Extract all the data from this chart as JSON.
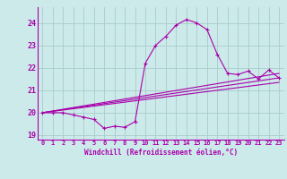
{
  "xlabel": "Windchill (Refroidissement éolien,°C)",
  "bg_color": "#cceaea",
  "grid_color": "#aacccc",
  "line_color": "#aa00aa",
  "xlim": [
    -0.5,
    23.5
  ],
  "ylim": [
    18.8,
    24.7
  ],
  "yticks": [
    19,
    20,
    21,
    22,
    23,
    24
  ],
  "xticks": [
    0,
    1,
    2,
    3,
    4,
    5,
    6,
    7,
    8,
    9,
    10,
    11,
    12,
    13,
    14,
    15,
    16,
    17,
    18,
    19,
    20,
    21,
    22,
    23
  ],
  "main_line_x": [
    0,
    1,
    2,
    3,
    4,
    5,
    6,
    7,
    8,
    9,
    10,
    11,
    12,
    13,
    14,
    15,
    16,
    17,
    18,
    19,
    20,
    21,
    22,
    23
  ],
  "main_line_y": [
    20.0,
    20.0,
    20.0,
    19.9,
    19.8,
    19.7,
    19.3,
    19.4,
    19.35,
    19.6,
    22.2,
    23.0,
    23.4,
    23.9,
    24.15,
    24.0,
    23.7,
    22.6,
    21.75,
    21.7,
    21.85,
    21.5,
    21.9,
    21.55
  ],
  "line2_y_start": 20.0,
  "line2_y_end": 21.55,
  "line3_y_start": 20.0,
  "line3_y_end": 21.35,
  "line4_y_start": 20.0,
  "line4_y_end": 21.75,
  "xlabel_fontsize": 5.5,
  "ytick_fontsize": 6,
  "xtick_fontsize": 5.0
}
